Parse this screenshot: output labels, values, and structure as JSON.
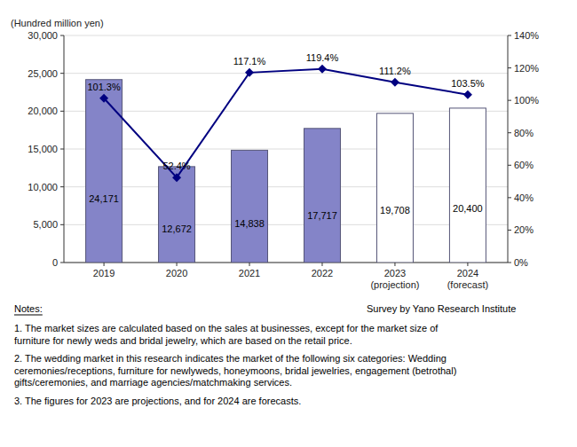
{
  "chart_data": {
    "type": "bar",
    "ylabel": "(Hundred million yen)",
    "categories": [
      "2019",
      "2020",
      "2021",
      "2022",
      "2023\n(projection)",
      "2024\n(forecast)"
    ],
    "series": [
      {
        "type": "bar",
        "colors": [
          "#8484c8",
          "#8484c8",
          "#8484c8",
          "#8484c8",
          "#ffffff",
          "#ffffff"
        ],
        "values": [
          24171,
          12672,
          14838,
          17717,
          19708,
          20400
        ],
        "value_labels": [
          "24,171",
          "12,672",
          "14,838",
          "17,717",
          "19,708",
          "20,400"
        ]
      },
      {
        "type": "line",
        "axis": "y2",
        "color": "#000080",
        "marker": "diamond",
        "values": [
          101.3,
          52.4,
          117.1,
          119.4,
          111.2,
          103.5
        ],
        "value_labels": [
          "101.3%",
          "52.4%",
          "117.1%",
          "119.4%",
          "111.2%",
          "103.5%"
        ]
      }
    ],
    "ylim": [
      0,
      30000
    ],
    "yticks": [
      0,
      {
        "value": 5000,
        "label": "5,000"
      },
      {
        "value": 10000,
        "label": "10,000"
      },
      {
        "value": 15000,
        "label": "15,000"
      },
      {
        "value": 20000,
        "label": "20,000"
      },
      {
        "value": 25000,
        "label": "25,000"
      },
      {
        "value": 30000,
        "label": "30,000"
      }
    ],
    "y2lim": [
      0,
      140
    ],
    "y2ticks": [
      {
        "value": 0,
        "label": "0%"
      },
      {
        "value": 20,
        "label": "20%"
      },
      {
        "value": 40,
        "label": "40%"
      },
      {
        "value": 60,
        "label": "60%"
      },
      {
        "value": 80,
        "label": "80%"
      },
      {
        "value": 100,
        "label": "100%"
      },
      {
        "value": 120,
        "label": "120%"
      },
      {
        "value": 140,
        "label": "140%"
      }
    ],
    "grid": true,
    "data_labels": true,
    "annotations": [
      "Notes:",
      "Survey by Yano Research Institute",
      "1. The market sizes are calculated based on the sales at businesses, except for the market size of\nfurniture for newly weds and bridal jewelry, which are based on the retail price.",
      "2. The wedding market in this research indicates the market of the following six categories: Wedding\nceremonies/receptions, furniture for newlyweds, honeymoons, bridal jewelries, engagement (betrothal)\ngifts/ceremonies, and marriage agencies/matchmaking services.",
      "3. The figures for 2023 are projections, and for 2024 are forecasts."
    ]
  }
}
